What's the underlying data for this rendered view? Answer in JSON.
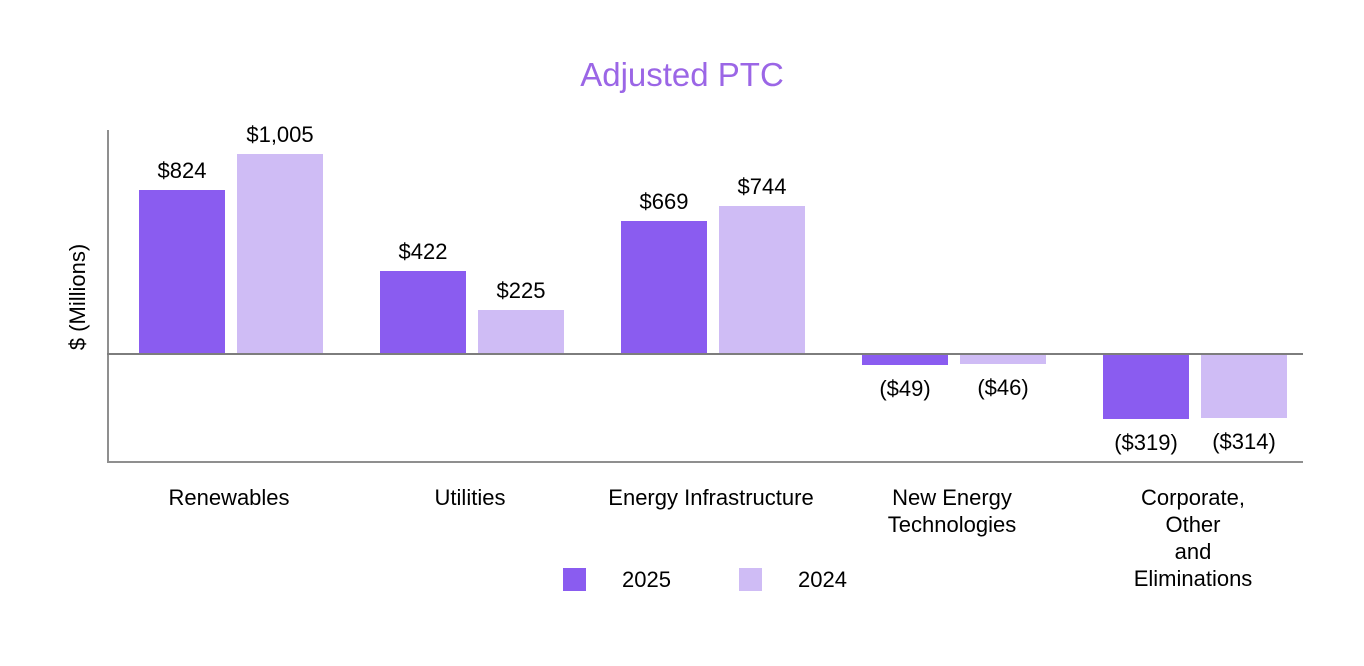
{
  "chart_data": {
    "type": "bar",
    "title": "Adjusted PTC",
    "title_color": "#9b66e6",
    "ylabel": "$ (Millions)",
    "xlabel": "",
    "categories": [
      "Renewables",
      "Utilities",
      "Energy Infrastructure",
      "New Energy\nTechnologies",
      "Corporate, Other\nand Eliminations"
    ],
    "series": [
      {
        "name": "2025",
        "color": "#8a5cf0",
        "values": [
          824,
          422,
          669,
          -49,
          -319
        ],
        "value_labels": [
          "$824",
          "$422",
          "$669",
          "($49)",
          "($319)"
        ]
      },
      {
        "name": "2024",
        "color": "#cfbcf5",
        "values": [
          1005,
          225,
          744,
          -46,
          -314
        ],
        "value_labels": [
          "$1,005",
          "$225",
          "$744",
          "($46)",
          "($314)"
        ]
      }
    ],
    "axis_color": "#8f8f8f",
    "text_color": "#000000",
    "ylim": [
      -540,
      1125
    ],
    "grid": false,
    "legend_position": "bottom"
  }
}
